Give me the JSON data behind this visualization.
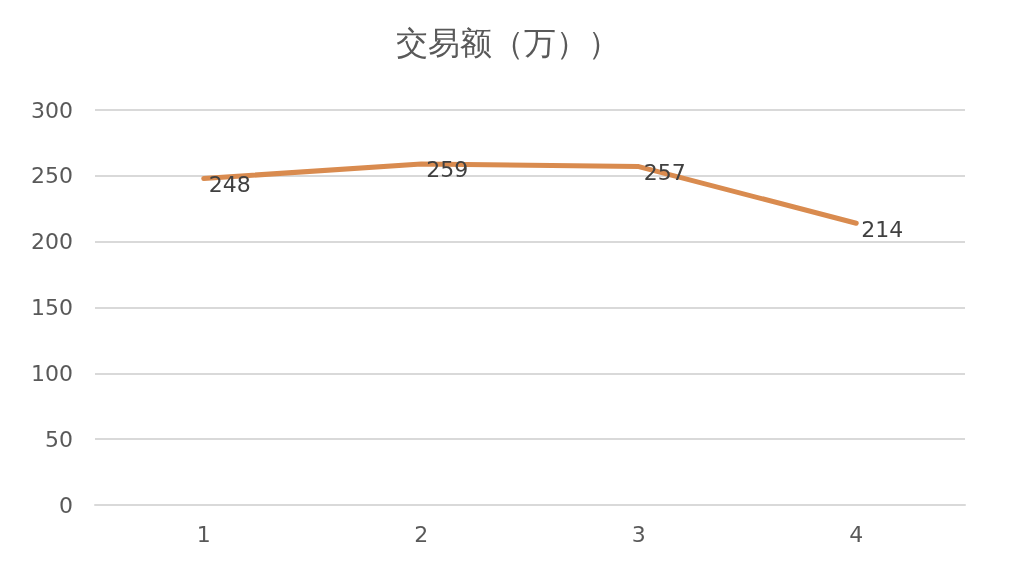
{
  "chart_data": {
    "type": "line",
    "title": "交易额（万））",
    "categories": [
      "1",
      "2",
      "3",
      "4"
    ],
    "series": [
      {
        "color": "#d98b4f",
        "values": [
          248,
          259,
          257,
          214
        ]
      }
    ],
    "ylim": [
      0,
      300
    ],
    "yticks": [
      0,
      50,
      100,
      150,
      200,
      250,
      300
    ],
    "grid": "y",
    "marker": "none",
    "line_style": "solid",
    "data_labels": true
  }
}
